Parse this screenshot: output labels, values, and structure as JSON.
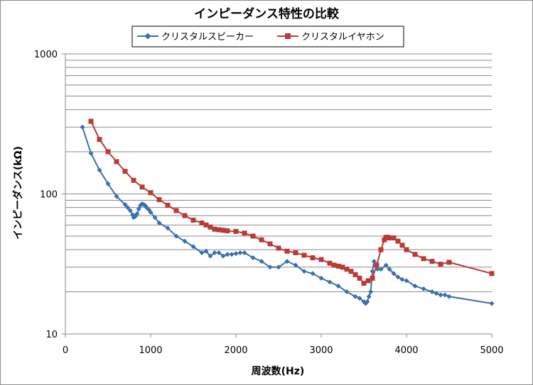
{
  "chart_data": {
    "type": "line",
    "title": "インピーダンス特性の比較",
    "xlabel": "周波数(Hz)",
    "ylabel": "インピーダンス(kΩ)",
    "xlim": [
      0,
      5000
    ],
    "ylim": [
      10,
      1000
    ],
    "yscale": "log",
    "xticks": [
      "0",
      "1000",
      "2000",
      "3000",
      "4000",
      "5000"
    ],
    "yticks": [
      "10",
      "100",
      "1000"
    ],
    "grid": "horizontal-major-minor",
    "legend_position": "top",
    "series": [
      {
        "name": "クリスタルスピーカー",
        "color": "#3a6fb0",
        "marker": "diamond",
        "points": [
          [
            200,
            300
          ],
          [
            300,
            195
          ],
          [
            400,
            148
          ],
          [
            500,
            118
          ],
          [
            600,
            96
          ],
          [
            700,
            84
          ],
          [
            730,
            80
          ],
          [
            760,
            76
          ],
          [
            790,
            71
          ],
          [
            800,
            68
          ],
          [
            820,
            69
          ],
          [
            840,
            72
          ],
          [
            860,
            78
          ],
          [
            880,
            83
          ],
          [
            900,
            85
          ],
          [
            920,
            84
          ],
          [
            940,
            82
          ],
          [
            960,
            79
          ],
          [
            980,
            77
          ],
          [
            1000,
            74
          ],
          [
            1050,
            68
          ],
          [
            1100,
            62
          ],
          [
            1200,
            57
          ],
          [
            1300,
            50
          ],
          [
            1400,
            46
          ],
          [
            1500,
            42
          ],
          [
            1600,
            38
          ],
          [
            1650,
            39
          ],
          [
            1700,
            36
          ],
          [
            1750,
            38
          ],
          [
            1800,
            38
          ],
          [
            1850,
            36
          ],
          [
            1900,
            37
          ],
          [
            1950,
            37
          ],
          [
            2000,
            37.5
          ],
          [
            2050,
            38
          ],
          [
            2100,
            38
          ],
          [
            2200,
            35
          ],
          [
            2300,
            33
          ],
          [
            2400,
            30
          ],
          [
            2500,
            30
          ],
          [
            2600,
            33
          ],
          [
            2700,
            31
          ],
          [
            2800,
            28
          ],
          [
            2900,
            27
          ],
          [
            3000,
            25
          ],
          [
            3100,
            23.5
          ],
          [
            3200,
            22
          ],
          [
            3300,
            20
          ],
          [
            3400,
            18.5
          ],
          [
            3450,
            18
          ],
          [
            3500,
            17
          ],
          [
            3520,
            16.5
          ],
          [
            3540,
            17
          ],
          [
            3560,
            18.5
          ],
          [
            3580,
            20
          ],
          [
            3600,
            28
          ],
          [
            3620,
            33
          ],
          [
            3640,
            31
          ],
          [
            3660,
            29
          ],
          [
            3700,
            29
          ],
          [
            3760,
            31
          ],
          [
            3800,
            29
          ],
          [
            3850,
            27
          ],
          [
            3900,
            25.5
          ],
          [
            3950,
            24.5
          ],
          [
            4000,
            24
          ],
          [
            4100,
            22
          ],
          [
            4200,
            21
          ],
          [
            4300,
            20
          ],
          [
            4350,
            19.5
          ],
          [
            4400,
            19
          ],
          [
            4450,
            19
          ],
          [
            4500,
            18.5
          ],
          [
            5000,
            16.5
          ]
        ]
      },
      {
        "name": "クリスタルイヤホン",
        "color": "#b83b36",
        "marker": "square",
        "points": [
          [
            300,
            330
          ],
          [
            400,
            245
          ],
          [
            500,
            200
          ],
          [
            600,
            170
          ],
          [
            700,
            145
          ],
          [
            800,
            125
          ],
          [
            900,
            112
          ],
          [
            1000,
            102
          ],
          [
            1100,
            91
          ],
          [
            1200,
            83
          ],
          [
            1300,
            76
          ],
          [
            1400,
            70
          ],
          [
            1500,
            65
          ],
          [
            1600,
            62
          ],
          [
            1650,
            60
          ],
          [
            1700,
            58
          ],
          [
            1750,
            56
          ],
          [
            1800,
            55.5
          ],
          [
            1850,
            55
          ],
          [
            1900,
            54.5
          ],
          [
            2000,
            54
          ],
          [
            2100,
            52.5
          ],
          [
            2200,
            50
          ],
          [
            2300,
            47
          ],
          [
            2400,
            44
          ],
          [
            2500,
            41
          ],
          [
            2600,
            39
          ],
          [
            2700,
            38
          ],
          [
            2800,
            36.5
          ],
          [
            2900,
            35
          ],
          [
            3000,
            34
          ],
          [
            3100,
            32
          ],
          [
            3150,
            31
          ],
          [
            3200,
            30.5
          ],
          [
            3250,
            30
          ],
          [
            3300,
            29
          ],
          [
            3350,
            28
          ],
          [
            3400,
            26.5
          ],
          [
            3450,
            25
          ],
          [
            3500,
            23
          ],
          [
            3550,
            24
          ],
          [
            3600,
            25
          ],
          [
            3650,
            31
          ],
          [
            3700,
            40
          ],
          [
            3740,
            47
          ],
          [
            3760,
            49
          ],
          [
            3780,
            49
          ],
          [
            3800,
            48.5
          ],
          [
            3850,
            48.5
          ],
          [
            3900,
            46
          ],
          [
            3950,
            43
          ],
          [
            4000,
            40
          ],
          [
            4100,
            37
          ],
          [
            4200,
            34.5
          ],
          [
            4300,
            33
          ],
          [
            4400,
            31.5
          ],
          [
            4500,
            32.5
          ],
          [
            5000,
            27
          ]
        ]
      }
    ]
  }
}
